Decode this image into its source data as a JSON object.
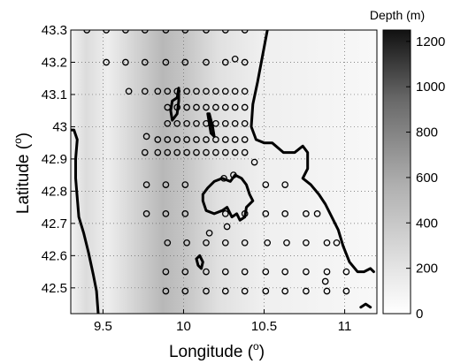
{
  "chart_data": {
    "type": "scatter",
    "subtype": "bathymetry map with sampling stations",
    "xlabel_main": "Longitude (",
    "xlabel_sup": "o",
    "xlabel_end": ")",
    "ylabel_main": "Latitude (",
    "ylabel_sup": "o",
    "ylabel_end": ")",
    "xlim": [
      9.3,
      11.2
    ],
    "ylim": [
      42.42,
      43.3
    ],
    "xticks": [
      "9.5",
      "10",
      "10.5",
      "11"
    ],
    "xtick_values": [
      9.5,
      10,
      10.5,
      11
    ],
    "yticks": [
      "42.5",
      "42.6",
      "42.7",
      "42.8",
      "42.9",
      "43",
      "43.1",
      "43.2",
      "43.3"
    ],
    "ytick_values": [
      42.5,
      42.6,
      42.7,
      42.8,
      42.9,
      43.0,
      43.1,
      43.2,
      43.3
    ],
    "grid": true,
    "grid_style": "dotted",
    "colorbar": {
      "title": "Depth (m)",
      "ticks": [
        "0",
        "200",
        "400",
        "600",
        "800",
        "1000",
        "1200"
      ],
      "tick_values": [
        0,
        200,
        400,
        600,
        800,
        1000,
        1200
      ],
      "range": [
        0,
        1250
      ],
      "colormap": "gray (white = shallow, black = deep)"
    },
    "coastlines": [
      [
        [
          9.3,
          42.99
        ],
        [
          9.32,
          42.99
        ],
        [
          9.34,
          42.96
        ],
        [
          9.33,
          42.9
        ],
        [
          9.33,
          42.84
        ],
        [
          9.34,
          42.78
        ],
        [
          9.35,
          42.72
        ],
        [
          9.38,
          42.67
        ],
        [
          9.41,
          42.61
        ],
        [
          9.44,
          42.54
        ],
        [
          9.46,
          42.49
        ],
        [
          9.47,
          42.42
        ]
      ],
      [
        [
          10.52,
          43.3
        ],
        [
          10.49,
          43.22
        ],
        [
          10.46,
          43.14
        ],
        [
          10.43,
          43.07
        ],
        [
          10.42,
          43.0
        ],
        [
          10.45,
          42.96
        ],
        [
          10.5,
          42.95
        ],
        [
          10.55,
          42.95
        ],
        [
          10.62,
          42.92
        ],
        [
          10.69,
          42.92
        ],
        [
          10.74,
          42.94
        ],
        [
          10.77,
          42.92
        ],
        [
          10.77,
          42.87
        ],
        [
          10.74,
          42.84
        ],
        [
          10.79,
          42.82
        ],
        [
          10.84,
          42.79
        ],
        [
          10.88,
          42.76
        ],
        [
          10.92,
          42.72
        ],
        [
          10.96,
          42.68
        ],
        [
          10.99,
          42.63
        ],
        [
          11.03,
          42.58
        ],
        [
          11.08,
          42.55
        ],
        [
          11.12,
          42.55
        ],
        [
          11.16,
          42.56
        ],
        [
          11.18,
          42.55
        ]
      ],
      [
        [
          9.97,
          43.12
        ],
        [
          9.96,
          43.09
        ],
        [
          9.93,
          43.08
        ],
        [
          9.92,
          43.05
        ],
        [
          9.93,
          43.02
        ],
        [
          9.96,
          43.04
        ],
        [
          9.97,
          43.08
        ],
        [
          9.97,
          43.12
        ]
      ],
      [
        [
          10.15,
          43.04
        ],
        [
          10.16,
          43.01
        ],
        [
          10.17,
          42.98
        ],
        [
          10.19,
          42.97
        ],
        [
          10.18,
          43.0
        ],
        [
          10.16,
          43.04
        ],
        [
          10.15,
          43.04
        ]
      ],
      [
        [
          10.12,
          42.79
        ],
        [
          10.15,
          42.81
        ],
        [
          10.19,
          42.83
        ],
        [
          10.24,
          42.84
        ],
        [
          10.29,
          42.83
        ],
        [
          10.32,
          42.85
        ],
        [
          10.36,
          42.84
        ],
        [
          10.39,
          42.82
        ],
        [
          10.41,
          42.79
        ],
        [
          10.43,
          42.77
        ],
        [
          10.39,
          42.75
        ],
        [
          10.38,
          42.72
        ],
        [
          10.35,
          42.71
        ],
        [
          10.33,
          42.73
        ],
        [
          10.3,
          42.72
        ],
        [
          10.27,
          42.75
        ],
        [
          10.24,
          42.74
        ],
        [
          10.19,
          42.73
        ],
        [
          10.14,
          42.74
        ],
        [
          10.12,
          42.77
        ],
        [
          10.12,
          42.79
        ]
      ],
      [
        [
          10.08,
          42.59
        ],
        [
          10.09,
          42.57
        ],
        [
          10.11,
          42.56
        ],
        [
          10.12,
          42.58
        ],
        [
          10.1,
          42.6
        ],
        [
          10.08,
          42.59
        ]
      ],
      [
        [
          11.1,
          42.44
        ],
        [
          11.13,
          42.45
        ],
        [
          11.16,
          42.44
        ]
      ]
    ],
    "stations": [
      [
        9.4,
        43.3
      ],
      [
        9.52,
        43.3
      ],
      [
        9.64,
        43.3
      ],
      [
        9.76,
        43.3
      ],
      [
        9.89,
        43.3
      ],
      [
        10.01,
        43.3
      ],
      [
        10.14,
        43.3
      ],
      [
        10.26,
        43.3
      ],
      [
        10.38,
        43.3
      ],
      [
        9.52,
        43.2
      ],
      [
        9.64,
        43.2
      ],
      [
        9.76,
        43.2
      ],
      [
        9.89,
        43.2
      ],
      [
        10.01,
        43.2
      ],
      [
        10.14,
        43.2
      ],
      [
        10.26,
        43.2
      ],
      [
        10.32,
        43.21
      ],
      [
        10.38,
        43.2
      ],
      [
        9.66,
        43.11
      ],
      [
        9.76,
        43.11
      ],
      [
        9.84,
        43.11
      ],
      [
        9.9,
        43.11
      ],
      [
        9.96,
        43.11
      ],
      [
        10.02,
        43.11
      ],
      [
        10.08,
        43.11
      ],
      [
        10.14,
        43.11
      ],
      [
        10.2,
        43.11
      ],
      [
        10.26,
        43.11
      ],
      [
        10.32,
        43.11
      ],
      [
        10.38,
        43.11
      ],
      [
        9.9,
        43.06
      ],
      [
        9.96,
        43.06
      ],
      [
        10.02,
        43.06
      ],
      [
        10.08,
        43.06
      ],
      [
        10.14,
        43.06
      ],
      [
        10.2,
        43.06
      ],
      [
        10.26,
        43.06
      ],
      [
        10.32,
        43.06
      ],
      [
        10.38,
        43.06
      ],
      [
        9.9,
        43.01
      ],
      [
        9.96,
        43.01
      ],
      [
        10.02,
        43.01
      ],
      [
        10.08,
        43.01
      ],
      [
        10.14,
        43.01
      ],
      [
        10.2,
        43.01
      ],
      [
        10.26,
        43.01
      ],
      [
        10.32,
        43.01
      ],
      [
        10.38,
        43.01
      ],
      [
        9.77,
        42.97
      ],
      [
        9.84,
        42.96
      ],
      [
        9.9,
        42.96
      ],
      [
        9.96,
        42.96
      ],
      [
        10.02,
        42.96
      ],
      [
        10.08,
        42.96
      ],
      [
        10.14,
        42.96
      ],
      [
        10.2,
        42.96
      ],
      [
        10.26,
        42.96
      ],
      [
        10.32,
        42.96
      ],
      [
        10.38,
        42.96
      ],
      [
        9.76,
        42.92
      ],
      [
        9.84,
        42.92
      ],
      [
        9.9,
        42.92
      ],
      [
        9.96,
        42.92
      ],
      [
        10.02,
        42.92
      ],
      [
        10.08,
        42.92
      ],
      [
        10.14,
        42.92
      ],
      [
        10.2,
        42.92
      ],
      [
        10.26,
        42.92
      ],
      [
        10.32,
        42.92
      ],
      [
        10.38,
        42.92
      ],
      [
        10.44,
        42.89
      ],
      [
        9.77,
        42.82
      ],
      [
        9.89,
        42.82
      ],
      [
        10.01,
        42.82
      ],
      [
        10.25,
        42.84
      ],
      [
        10.31,
        42.85
      ],
      [
        10.51,
        42.82
      ],
      [
        10.63,
        42.82
      ],
      [
        9.77,
        42.73
      ],
      [
        9.89,
        42.73
      ],
      [
        10.01,
        42.73
      ],
      [
        10.26,
        42.73
      ],
      [
        10.38,
        42.73
      ],
      [
        10.51,
        42.73
      ],
      [
        10.63,
        42.73
      ],
      [
        10.76,
        42.73
      ],
      [
        10.83,
        42.73
      ],
      [
        10.27,
        42.69
      ],
      [
        10.16,
        42.67
      ],
      [
        9.9,
        42.64
      ],
      [
        10.02,
        42.64
      ],
      [
        10.14,
        42.64
      ],
      [
        10.26,
        42.64
      ],
      [
        10.38,
        42.64
      ],
      [
        10.52,
        42.64
      ],
      [
        10.64,
        42.64
      ],
      [
        10.76,
        42.64
      ],
      [
        10.89,
        42.64
      ],
      [
        10.95,
        42.64
      ],
      [
        9.89,
        42.55
      ],
      [
        10.01,
        42.55
      ],
      [
        10.14,
        42.55
      ],
      [
        10.26,
        42.55
      ],
      [
        10.38,
        42.55
      ],
      [
        10.51,
        42.55
      ],
      [
        10.63,
        42.55
      ],
      [
        10.76,
        42.55
      ],
      [
        10.89,
        42.55
      ],
      [
        11.01,
        42.55
      ],
      [
        10.88,
        42.52
      ],
      [
        9.89,
        42.49
      ],
      [
        10.01,
        42.49
      ],
      [
        10.14,
        42.49
      ],
      [
        10.26,
        42.49
      ],
      [
        10.38,
        42.49
      ],
      [
        10.51,
        42.49
      ],
      [
        10.63,
        42.49
      ],
      [
        10.76,
        42.49
      ],
      [
        10.89,
        42.49
      ],
      [
        11.01,
        42.49
      ]
    ]
  }
}
